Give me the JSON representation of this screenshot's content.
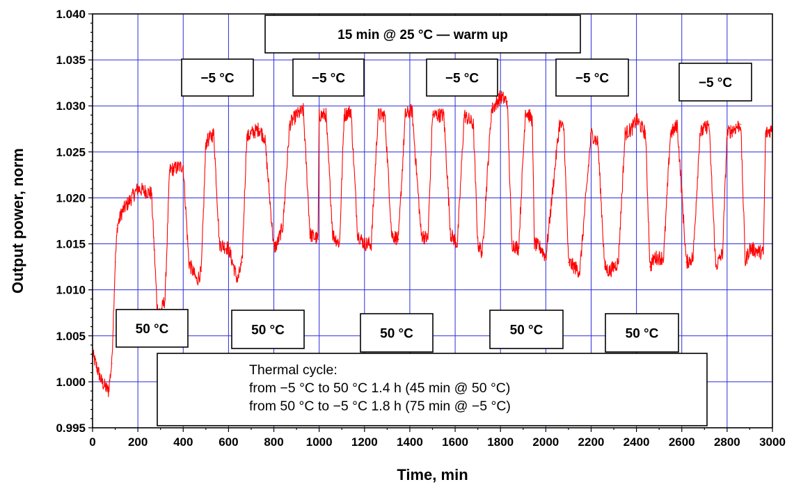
{
  "chart_data": {
    "type": "line",
    "xlabel": "Time, min",
    "ylabel": "Output power, norm",
    "xlim": [
      0,
      3000
    ],
    "ylim": [
      0.995,
      1.04
    ],
    "x_ticks": [
      "0",
      "200",
      "400",
      "600",
      "800",
      "1000",
      "1200",
      "1400",
      "1600",
      "1800",
      "2000",
      "2200",
      "2400",
      "2600",
      "2800",
      "3000"
    ],
    "y_ticks": [
      "0.995",
      "1.000",
      "1.005",
      "1.010",
      "1.015",
      "1.020",
      "1.025",
      "1.030",
      "1.035",
      "1.040"
    ],
    "grid": true,
    "series": [
      {
        "color": "#ff0000",
        "x": [
          0,
          40,
          70,
          85,
          100,
          110,
          130,
          200,
          260,
          285,
          300,
          320,
          340,
          400,
          425,
          460,
          480,
          500,
          535,
          560,
          600,
          640,
          660,
          680,
          700,
          735,
          760,
          800,
          815,
          840,
          870,
          900,
          930,
          960,
          995,
          1000,
          1030,
          1060,
          1090,
          1110,
          1140,
          1170,
          1200,
          1230,
          1260,
          1290,
          1320,
          1350,
          1380,
          1410,
          1450,
          1480,
          1500,
          1550,
          1580,
          1610,
          1640,
          1680,
          1700,
          1720,
          1760,
          1800,
          1830,
          1850,
          1880,
          1910,
          1940,
          1950,
          1980,
          2000,
          2060,
          2080,
          2100,
          2150,
          2200,
          2230,
          2260,
          2280,
          2320,
          2350,
          2380,
          2400,
          2440,
          2460,
          2480,
          2520,
          2550,
          2570,
          2580,
          2620,
          2650,
          2680,
          2720,
          2750,
          2780,
          2800,
          2860,
          2880,
          2900,
          2960,
          2970,
          3000
        ],
        "y": [
          1.003,
          1.0,
          0.999,
          1.002,
          1.013,
          1.017,
          1.0185,
          1.021,
          1.0205,
          1.008,
          1.0075,
          1.009,
          1.023,
          1.0235,
          1.013,
          1.011,
          1.012,
          1.026,
          1.027,
          1.015,
          1.0145,
          1.011,
          1.013,
          1.0265,
          1.027,
          1.0275,
          1.0265,
          1.0145,
          1.015,
          1.017,
          1.028,
          1.029,
          1.0295,
          1.016,
          1.0155,
          1.029,
          1.029,
          1.016,
          1.015,
          1.029,
          1.0295,
          1.016,
          1.015,
          1.015,
          1.029,
          1.029,
          1.016,
          1.0155,
          1.029,
          1.0295,
          1.016,
          1.0155,
          1.029,
          1.029,
          1.016,
          1.015,
          1.029,
          1.028,
          1.015,
          1.014,
          1.0295,
          1.031,
          1.0305,
          1.015,
          1.0145,
          1.0295,
          1.0285,
          1.015,
          1.0145,
          1.0135,
          1.028,
          1.0275,
          1.013,
          1.012,
          1.027,
          1.026,
          1.0125,
          1.012,
          1.013,
          1.027,
          1.0275,
          1.0285,
          1.027,
          1.0125,
          1.0135,
          1.0135,
          1.027,
          1.0275,
          1.028,
          1.013,
          1.0135,
          1.027,
          1.028,
          1.0125,
          1.014,
          1.027,
          1.028,
          1.013,
          1.0145,
          1.014,
          1.027,
          1.0275
        ]
      }
    ],
    "annotations": [
      {
        "text": "15 min @ 25 °C — warm up"
      },
      {
        "text": "−5 °C"
      },
      {
        "text": "−5 °C"
      },
      {
        "text": "−5 °C"
      },
      {
        "text": "−5 °C"
      },
      {
        "text": "−5 °C"
      },
      {
        "text": "50 °C"
      },
      {
        "text": "50 °C"
      },
      {
        "text": "50 °C"
      },
      {
        "text": "50 °C"
      },
      {
        "text": "50 °C"
      },
      {
        "lines": [
          "Thermal cycle:",
          "from −5 °C to 50 °C 1.4 h (45 min @ 50 °C)",
          "from 50 °C to −5 °C 1.8 h (75 min @ −5 °C)"
        ]
      }
    ]
  }
}
